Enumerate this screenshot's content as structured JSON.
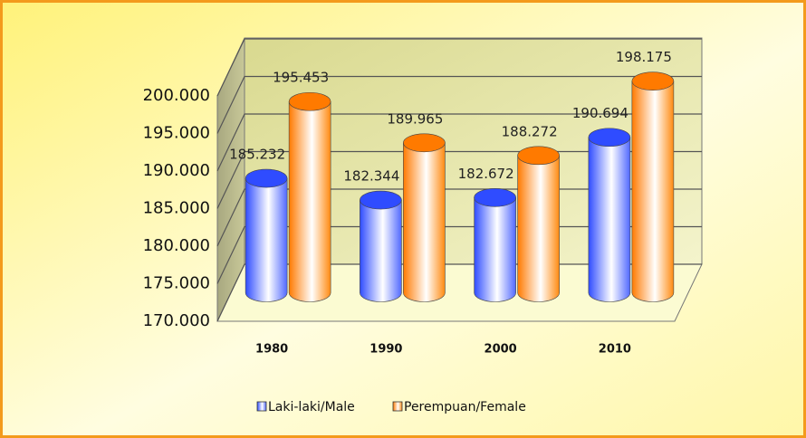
{
  "chart_data": {
    "type": "bar3d",
    "categories": [
      "1980",
      "1990",
      "2000",
      "2010"
    ],
    "series": [
      {
        "name": "Laki-laki/Male",
        "color": "#2f4cff",
        "values": [
          185232,
          182344,
          182672,
          190694
        ],
        "value_labels": [
          "185.232",
          "182.344",
          "182.672",
          "190.694"
        ]
      },
      {
        "name": "Perempuan/Female",
        "color": "#ff7a00",
        "values": [
          195453,
          189965,
          188272,
          198175
        ],
        "value_labels": [
          "195.453",
          "189.965",
          "188.272",
          "198.175"
        ]
      }
    ],
    "ylim": [
      170000,
      200000
    ],
    "yticks": [
      {
        "value": 170000,
        "label": "170.000"
      },
      {
        "value": 175000,
        "label": "175.000"
      },
      {
        "value": 180000,
        "label": "180.000"
      },
      {
        "value": 185000,
        "label": "185.000"
      },
      {
        "value": 190000,
        "label": "190.000"
      },
      {
        "value": 195000,
        "label": "195.000"
      },
      {
        "value": 200000,
        "label": "200.000"
      }
    ],
    "grid": true,
    "legend": "bottom"
  }
}
